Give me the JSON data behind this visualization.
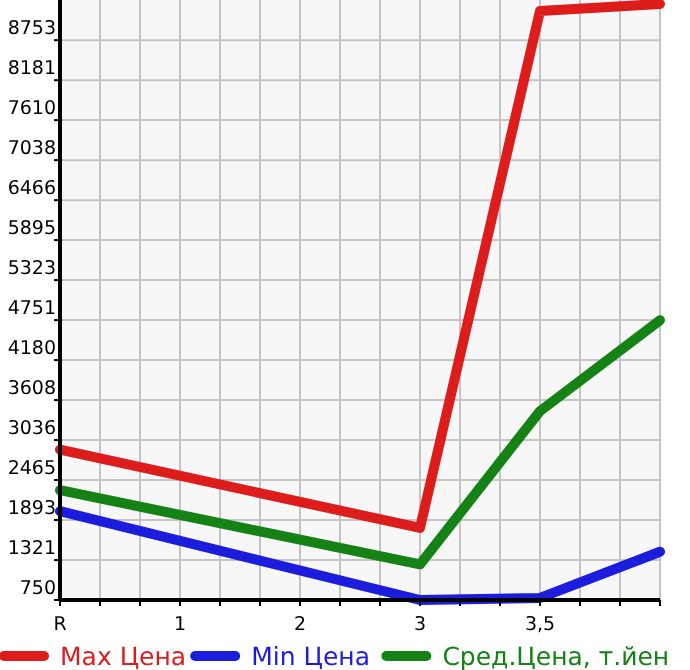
{
  "chart_data": {
    "type": "line",
    "categories": [
      "R",
      "1",
      "2",
      "3",
      "3,5",
      null
    ],
    "ylim": [
      750,
      9327
    ],
    "yticks": [
      750,
      1321,
      1893,
      2465,
      3036,
      3608,
      4180,
      4751,
      5323,
      5895,
      6466,
      7038,
      7610,
      8181,
      8753
    ],
    "grid": true,
    "legend": "bottom",
    "marker": "none",
    "line_style": "solid",
    "series": [
      {
        "name": "Max Цена",
        "color": "#dd1c1c",
        "values": [
          2900,
          null,
          null,
          1780,
          9170,
          9270
        ]
      },
      {
        "name": "Min Цена",
        "color": "#1c1cdd",
        "values": [
          2020,
          null,
          null,
          750,
          780,
          1440
        ]
      },
      {
        "name": "Сред.Цена, т.йен",
        "color": "#148214",
        "values": [
          2320,
          null,
          null,
          1260,
          3450,
          4750
        ]
      }
    ]
  }
}
